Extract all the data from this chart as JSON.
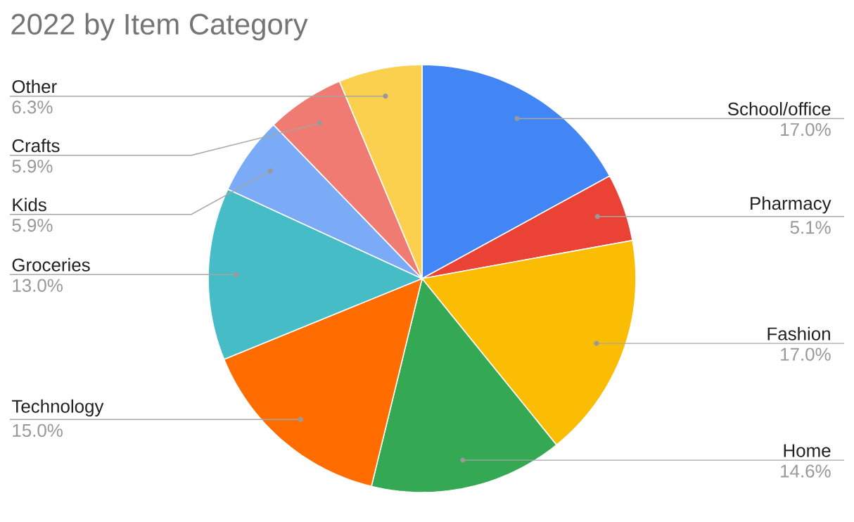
{
  "chart_data": {
    "type": "pie",
    "title": "2022 by Item Category",
    "categories": [
      "School/office",
      "Pharmacy",
      "Fashion",
      "Home",
      "Technology",
      "Groceries",
      "Kids",
      "Crafts",
      "Other"
    ],
    "values": [
      17.0,
      5.1,
      17.0,
      14.6,
      15.0,
      13.0,
      5.9,
      5.9,
      6.3
    ],
    "value_labels": [
      "17.0%",
      "5.1%",
      "17.0%",
      "14.6%",
      "15.0%",
      "13.0%",
      "5.9%",
      "5.9%",
      "6.3%"
    ],
    "colors": [
      "#4285f4",
      "#ea4335",
      "#fbbc04",
      "#34a853",
      "#ff6d01",
      "#46bdc6",
      "#7baaf7",
      "#f07b72",
      "#fcd04f"
    ]
  }
}
